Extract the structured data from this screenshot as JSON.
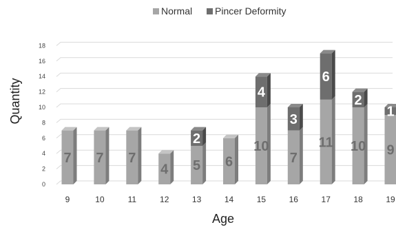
{
  "chart_data": {
    "type": "bar",
    "stacked": true,
    "three_d": true,
    "categories": [
      "9",
      "10",
      "11",
      "12",
      "13",
      "14",
      "15",
      "16",
      "17",
      "18",
      "19"
    ],
    "series": [
      {
        "name": "Normal",
        "values": [
          7,
          7,
          7,
          4,
          5,
          6,
          10,
          7,
          11,
          10,
          9
        ],
        "color": "#a6a6a6",
        "side_color": "#7d7d7d",
        "top_color": "#c4c4c4",
        "label_color": "#6e6e6e"
      },
      {
        "name": "Pincer Deformity",
        "values": [
          0,
          0,
          0,
          0,
          2,
          0,
          4,
          3,
          6,
          2,
          1
        ],
        "color": "#6e6e6e",
        "side_color": "#4a4a4a",
        "top_color": "#8a8a8a",
        "label_color": "#ffffff"
      }
    ],
    "data_labels": {
      "Normal": [
        "7",
        "7",
        "7",
        "4",
        "5",
        "6",
        "10",
        "7",
        "11",
        "10",
        "9"
      ],
      "Pincer Deformity": [
        "",
        "",
        "",
        "",
        "2",
        "",
        "4",
        "3",
        "6",
        "2",
        "1"
      ]
    },
    "yticks": [
      "0",
      "2",
      "4",
      "6",
      "8",
      "10",
      "12",
      "14",
      "16",
      "18"
    ],
    "ylim": [
      0,
      18
    ],
    "xlabel": "Age",
    "ylabel": "Quantity",
    "legend_position": "top",
    "grid": true,
    "gridline_color": "#d9d9d9"
  }
}
